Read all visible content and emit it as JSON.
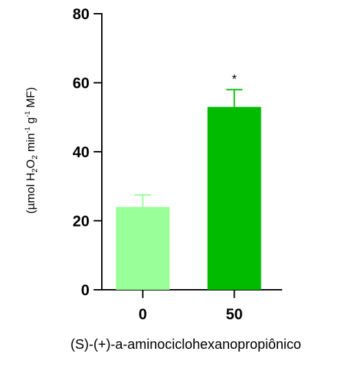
{
  "chart_data": {
    "type": "bar",
    "categories": [
      "0",
      "50"
    ],
    "values": [
      24,
      53
    ],
    "errors": [
      3.5,
      5
    ],
    "significance": [
      "",
      "*"
    ],
    "bar_colors": [
      "#99ff99",
      "#00bb00"
    ],
    "error_colors": [
      "#99ff99",
      "#00bb00"
    ],
    "xlabel": "(S)-(+)-a-aminociclohexanopropiônico",
    "ylabel": {
      "prefix": "(µmol H",
      "sub1": "2",
      "mid1": "O",
      "sub2": "2",
      "mid2": " min",
      "sup1": "-1",
      "mid3": " g",
      "sup2": "-1",
      "suffix": " MF)"
    },
    "yticks": [
      0,
      20,
      40,
      60,
      80
    ],
    "ytick_labels": [
      "0",
      "20",
      "40",
      "60",
      "80"
    ],
    "ylim": [
      0,
      80
    ],
    "grid": false,
    "legend": "none"
  }
}
